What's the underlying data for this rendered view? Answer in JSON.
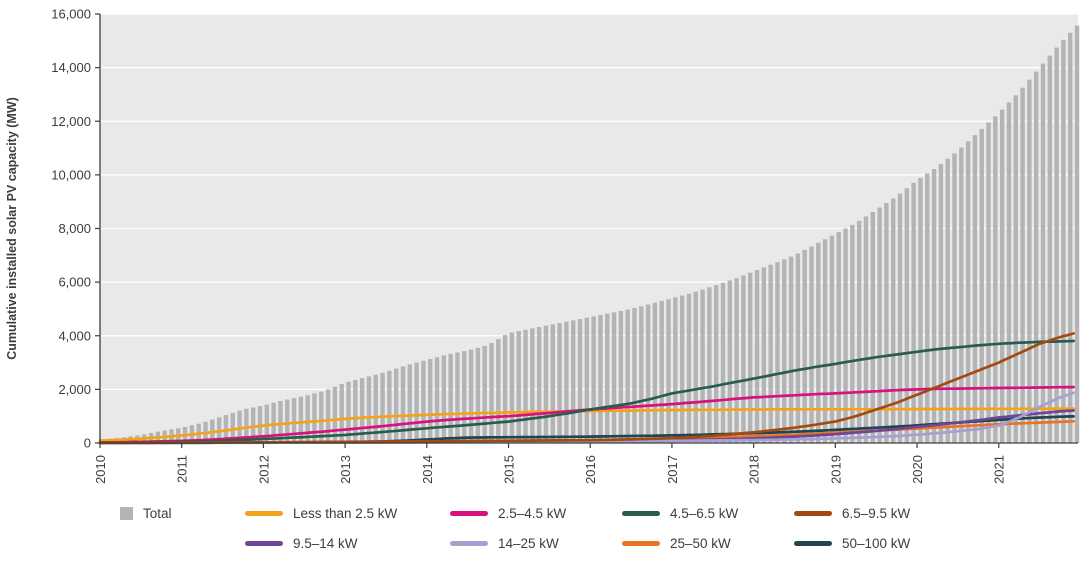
{
  "chart_data": {
    "type": "combo",
    "title": "",
    "ylabel": "Cumulative installed solar PV capacity (MW)",
    "xlabel": "",
    "ylim": [
      0,
      16000
    ],
    "xlim": [
      2010,
      2021.97
    ],
    "y_tick_labels": [
      "0",
      "2,000",
      "4,000",
      "6,000",
      "8,000",
      "10,000",
      "12,000",
      "14,000",
      "16,000"
    ],
    "y_tick_values": [
      0,
      2000,
      4000,
      6000,
      8000,
      10000,
      12000,
      14000,
      16000
    ],
    "x_tick_labels": [
      "2010",
      "2011",
      "2012",
      "2013",
      "2014",
      "2015",
      "2016",
      "2017",
      "2018",
      "2019",
      "2020",
      "2021"
    ],
    "x_tick_values": [
      2010,
      2011,
      2012,
      2013,
      2014,
      2015,
      2016,
      2017,
      2018,
      2019,
      2020,
      2021
    ],
    "x_start": 2010,
    "x_step_years": 0.25,
    "grid": "horizontal-white-lines",
    "legend_position": "bottom",
    "plot_background": "#e9e9e9",
    "bar_series": {
      "name": "Total",
      "color": "#b3b4b6",
      "values": [
        130,
        200,
        300,
        450,
        570,
        750,
        1000,
        1250,
        1400,
        1600,
        1750,
        1950,
        2250,
        2450,
        2650,
        2900,
        3100,
        3300,
        3450,
        3650,
        4100,
        4250,
        4400,
        4550,
        4700,
        4850,
        5000,
        5200,
        5400,
        5600,
        5850,
        6100,
        6400,
        6700,
        7000,
        7400,
        7800,
        8200,
        8700,
        9200,
        9800,
        10300,
        10900,
        11600,
        12300,
        13100,
        14000,
        14900,
        15700
      ]
    },
    "series": [
      {
        "name": "Less than 2.5 kW",
        "color": "#f5a21b",
        "values": [
          90,
          120,
          160,
          220,
          280,
          360,
          450,
          560,
          650,
          720,
          780,
          830,
          900,
          950,
          990,
          1020,
          1050,
          1080,
          1100,
          1120,
          1140,
          1160,
          1170,
          1180,
          1190,
          1200,
          1210,
          1220,
          1230,
          1235,
          1240,
          1245,
          1250,
          1252,
          1254,
          1256,
          1258,
          1260,
          1262,
          1264,
          1266,
          1268,
          1270,
          1272,
          1274,
          1276,
          1278,
          1280,
          1282
        ]
      },
      {
        "name": "2.5–4.5 kW",
        "color": "#d9117e",
        "values": [
          20,
          30,
          45,
          60,
          80,
          110,
          150,
          200,
          250,
          310,
          370,
          430,
          500,
          570,
          640,
          720,
          800,
          860,
          910,
          960,
          1000,
          1060,
          1120,
          1190,
          1250,
          1300,
          1350,
          1400,
          1450,
          1510,
          1570,
          1640,
          1700,
          1740,
          1780,
          1820,
          1850,
          1890,
          1930,
          1970,
          2000,
          2020,
          2030,
          2040,
          2050,
          2060,
          2070,
          2080,
          2090
        ]
      },
      {
        "name": "4.5–6.5 kW",
        "color": "#2a5c4e",
        "values": [
          10,
          15,
          20,
          30,
          40,
          60,
          85,
          115,
          150,
          185,
          220,
          260,
          300,
          360,
          420,
          485,
          550,
          610,
          670,
          735,
          800,
          900,
          1000,
          1120,
          1250,
          1360,
          1480,
          1650,
          1850,
          1980,
          2110,
          2260,
          2400,
          2550,
          2700,
          2830,
          2950,
          3080,
          3200,
          3300,
          3400,
          3500,
          3570,
          3640,
          3700,
          3740,
          3770,
          3790,
          3810
        ]
      },
      {
        "name": "6.5–9.5 kW",
        "color": "#a24b10",
        "values": [
          5,
          5,
          8,
          10,
          12,
          15,
          18,
          22,
          25,
          30,
          35,
          40,
          45,
          50,
          55,
          60,
          65,
          70,
          75,
          80,
          85,
          90,
          95,
          100,
          110,
          120,
          135,
          155,
          180,
          220,
          270,
          330,
          400,
          480,
          570,
          680,
          800,
          1000,
          1250,
          1500,
          1800,
          2100,
          2400,
          2700,
          3000,
          3350,
          3700,
          3950,
          4150
        ]
      },
      {
        "name": "9.5–14 kW",
        "color": "#6f4596",
        "values": [
          3,
          4,
          5,
          6,
          8,
          10,
          12,
          15,
          18,
          21,
          24,
          27,
          30,
          33,
          36,
          40,
          44,
          48,
          52,
          56,
          60,
          64,
          68,
          72,
          76,
          82,
          88,
          95,
          105,
          115,
          130,
          150,
          175,
          205,
          240,
          280,
          330,
          390,
          450,
          520,
          600,
          680,
          760,
          850,
          950,
          1030,
          1110,
          1180,
          1230
        ]
      },
      {
        "name": "14–25 kW",
        "color": "#a79fcf",
        "values": [
          2,
          2,
          3,
          3,
          4,
          5,
          6,
          7,
          8,
          10,
          12,
          14,
          16,
          18,
          20,
          23,
          26,
          29,
          32,
          36,
          40,
          44,
          48,
          53,
          58,
          63,
          68,
          74,
          80,
          87,
          94,
          100,
          110,
          120,
          135,
          150,
          170,
          195,
          225,
          260,
          310,
          370,
          440,
          520,
          650,
          950,
          1350,
          1700,
          1950
        ]
      },
      {
        "name": "25–50 kW",
        "color": "#e87424",
        "values": [
          2,
          3,
          4,
          5,
          7,
          9,
          11,
          14,
          17,
          20,
          24,
          28,
          32,
          36,
          40,
          45,
          50,
          55,
          60,
          66,
          72,
          80,
          88,
          96,
          105,
          115,
          130,
          145,
          160,
          180,
          200,
          225,
          250,
          280,
          310,
          345,
          380,
          420,
          460,
          500,
          540,
          580,
          620,
          660,
          700,
          730,
          760,
          790,
          820
        ]
      },
      {
        "name": "50–100 kW",
        "color": "#204450",
        "values": [
          2,
          3,
          4,
          5,
          6,
          8,
          10,
          12,
          15,
          18,
          22,
          26,
          30,
          40,
          60,
          90,
          130,
          170,
          200,
          210,
          215,
          220,
          225,
          230,
          240,
          250,
          260,
          270,
          285,
          300,
          320,
          340,
          365,
          390,
          420,
          450,
          490,
          530,
          570,
          610,
          660,
          710,
          760,
          810,
          860,
          910,
          950,
          980,
          1000
        ]
      }
    ]
  }
}
